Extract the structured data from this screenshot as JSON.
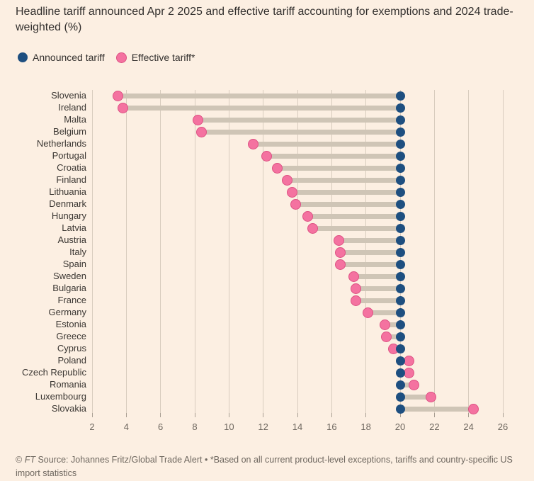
{
  "title": {
    "line1": "Headline tariff announced Apr 2 2025 and effective tariff accounting for exemptions and 2024 trade-",
    "line2": "weighted (%)"
  },
  "legend": [
    {
      "label": "Announced tariff",
      "color": "#1E4F80"
    },
    {
      "label": "Effective tariff*",
      "color": "#F472A0"
    }
  ],
  "footer": {
    "prefix": "© ",
    "brand": "FT",
    "line1_rest": " Source: Johannes Fritz/Global Trade Alert • *Based on all current product-level exceptions, tariffs and country-specific US",
    "line2": "import statistics"
  },
  "colors": {
    "background": "#FCEFE2",
    "text": "#33302E",
    "label": "#3B3733",
    "muted": "#6E675F",
    "announced": "#1E4F80",
    "effective": "#F472A0",
    "effective_stroke": "#DD5183",
    "bar": "#CFC5B6",
    "gridline": "#D8CCBE",
    "tick": "#A89E92"
  },
  "chart_data": {
    "type": "scatter",
    "variant": "dumbbell",
    "title": "Headline tariff announced Apr 2 2025 and effective tariff accounting for exemptions and 2024 trade-weighted (%)",
    "unit": "%",
    "xlabel": "",
    "ylabel": "",
    "xlim": [
      2,
      26
    ],
    "xticks": [
      2,
      4,
      6,
      8,
      10,
      12,
      14,
      16,
      18,
      20,
      22,
      24,
      26
    ],
    "grid": "vertical",
    "legend_position": "top-left",
    "categories": [
      "Slovenia",
      "Ireland",
      "Malta",
      "Belgium",
      "Netherlands",
      "Portugal",
      "Croatia",
      "Finland",
      "Lithuania",
      "Denmark",
      "Hungary",
      "Latvia",
      "Austria",
      "Italy",
      "Spain",
      "Sweden",
      "Bulgaria",
      "France",
      "Germany",
      "Estonia",
      "Greece",
      "Cyprus",
      "Poland",
      "Czech Republic",
      "Romania",
      "Luxembourg",
      "Slovakia"
    ],
    "series": [
      {
        "name": "Announced tariff",
        "color": "#1E4F80",
        "values": [
          20,
          20,
          20,
          20,
          20,
          20,
          20,
          20,
          20,
          20,
          20,
          20,
          20,
          20,
          20,
          20,
          20,
          20,
          20,
          20,
          20,
          20,
          20,
          20,
          20,
          20,
          20
        ]
      },
      {
        "name": "Effective tariff*",
        "color": "#F472A0",
        "values": [
          3.5,
          3.8,
          8.2,
          8.4,
          11.4,
          12.2,
          12.8,
          13.4,
          13.7,
          13.9,
          14.6,
          14.9,
          16.4,
          16.5,
          16.5,
          17.3,
          17.4,
          17.4,
          18.1,
          19.1,
          19.2,
          19.6,
          20.5,
          20.5,
          20.8,
          21.8,
          24.3
        ]
      }
    ]
  }
}
